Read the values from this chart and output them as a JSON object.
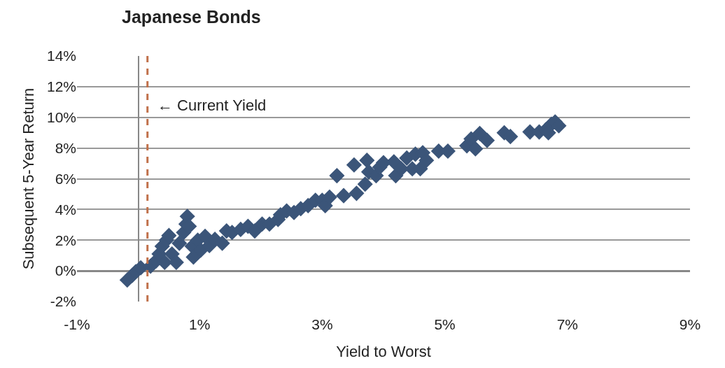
{
  "chart_data": {
    "type": "scatter",
    "title": "Japanese Bonds",
    "xlabel": "Yield to Worst",
    "ylabel": "Subsequent 5-Year Return",
    "xlim": [
      -1,
      9
    ],
    "xticks": [
      {
        "value": -1,
        "label": "-1%"
      },
      {
        "value": 1,
        "label": "1%"
      },
      {
        "value": 3,
        "label": "3%"
      },
      {
        "value": 5,
        "label": "5%"
      },
      {
        "value": 7,
        "label": "7%"
      },
      {
        "value": 9,
        "label": "9%"
      }
    ],
    "ylim": [
      -2,
      14
    ],
    "yticks": [
      {
        "value": -2,
        "label": "-2%"
      },
      {
        "value": 0,
        "label": "0%"
      },
      {
        "value": 2,
        "label": "2%"
      },
      {
        "value": 4,
        "label": "4%"
      },
      {
        "value": 6,
        "label": "6%"
      },
      {
        "value": 8,
        "label": "8%"
      },
      {
        "value": 10,
        "label": "10%"
      },
      {
        "value": 12,
        "label": "12%"
      },
      {
        "value": 14,
        "label": "14%"
      }
    ],
    "grid": "y",
    "marker": "diamond",
    "ref_lines": [
      {
        "axis": "x",
        "value": 0.15,
        "label": "← Current Yield",
        "color": "#c0704a",
        "line_style": "dashed"
      }
    ],
    "series": [
      {
        "color": "#3b5579",
        "x": [
          -0.18,
          -0.1,
          -0.04,
          0.04,
          0.2,
          0.29,
          0.34,
          0.39,
          0.46,
          0.5,
          0.43,
          0.55,
          0.62,
          0.67,
          0.74,
          0.78,
          0.8,
          0.83,
          0.88,
          0.9,
          0.97,
          1.02,
          1.09,
          1.16,
          1.25,
          1.37,
          1.44,
          1.53,
          1.67,
          1.79,
          1.9,
          2.02,
          2.14,
          2.28,
          2.32,
          2.42,
          2.54,
          2.65,
          2.77,
          2.89,
          3.0,
          3.05,
          3.12,
          3.24,
          3.35,
          3.52,
          3.56,
          3.7,
          3.73,
          3.76,
          3.88,
          3.94,
          4.0,
          4.17,
          4.2,
          4.29,
          4.38,
          4.47,
          4.52,
          4.6,
          4.64,
          4.7,
          4.9,
          5.05,
          5.36,
          5.43,
          5.57,
          5.5,
          5.69,
          5.97,
          6.07,
          6.39,
          6.54,
          6.65,
          6.74,
          6.8,
          6.86,
          6.69
        ],
        "values": [
          -0.6,
          -0.3,
          -0.05,
          0.2,
          0.3,
          0.65,
          1.1,
          1.6,
          2.0,
          2.3,
          0.55,
          1.1,
          0.55,
          1.8,
          2.5,
          3.05,
          3.55,
          2.9,
          1.6,
          0.9,
          2.0,
          1.35,
          2.25,
          1.65,
          2.05,
          1.8,
          2.6,
          2.5,
          2.7,
          2.9,
          2.6,
          3.05,
          3.05,
          3.35,
          3.65,
          3.9,
          3.8,
          4.05,
          4.25,
          4.6,
          4.6,
          4.25,
          4.8,
          6.2,
          4.9,
          6.9,
          5.05,
          5.65,
          7.2,
          6.45,
          6.2,
          6.75,
          7.05,
          7.1,
          6.2,
          6.65,
          7.35,
          6.65,
          7.6,
          6.65,
          7.7,
          7.2,
          7.8,
          7.8,
          8.15,
          8.6,
          8.95,
          7.95,
          8.5,
          9.0,
          8.75,
          9.05,
          9.05,
          9.2,
          9.55,
          9.7,
          9.45,
          9.0
        ]
      }
    ]
  }
}
